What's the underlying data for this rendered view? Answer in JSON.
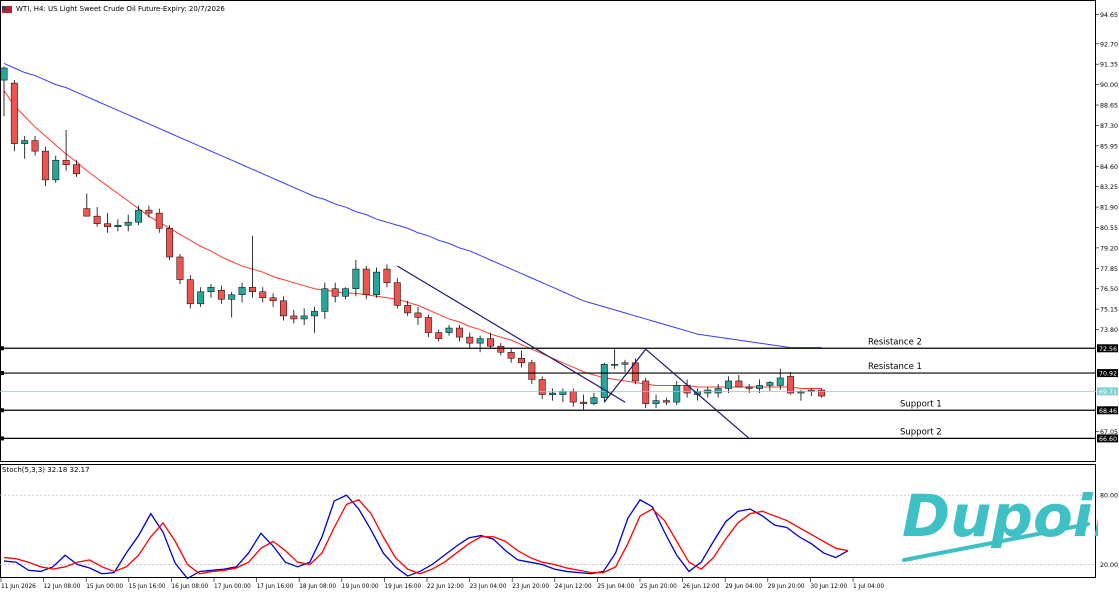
{
  "header": {
    "title": "WTI, H4:  US Light Sweet Crude Oil Future-Expiry: 20/7/2026"
  },
  "indicator": {
    "label": "Stoch(5,3,3) 32.18 32.17"
  },
  "logo": {
    "text": "Dupoin",
    "color": "#3fc0c4"
  },
  "colors": {
    "bull": "#26a69a",
    "bear": "#ef5350",
    "ma_fast": "#ff3b30",
    "ma_slow": "#3a3aff",
    "trend": "#1a1a6e",
    "level": "#000000",
    "current_price_line": "#7fd0d6"
  },
  "chart_data": [
    {
      "type": "candlestick",
      "symbol": "WTI",
      "timeframe": "H4",
      "y_ticks": [
        "94.65",
        "92.70",
        "91.35",
        "90.00",
        "88.65",
        "87.30",
        "85.95",
        "84.60",
        "83.25",
        "81.90",
        "80.55",
        "79.20",
        "77.85",
        "76.50",
        "75.15",
        "73.80",
        "67.05"
      ],
      "ylim": [
        65.7,
        95.2
      ],
      "x_labels": [
        "11 Jun 2026",
        "12 Jun 08:00",
        "15 Jun 00:00",
        "15 Jun 16:00",
        "16 Jun 08:00",
        "17 Jun 00:00",
        "17 Jun 16:00",
        "18 Jun 08:00",
        "19 Jun 00:00",
        "19 Jun 16:00",
        "22 Jun 12:00",
        "23 Jun 04:00",
        "23 Jun 20:00",
        "24 Jun 12:00",
        "25 Jun 04:00",
        "25 Jun 20:00",
        "26 Jun 12:00",
        "29 Jun 04:00",
        "29 Jun 20:00",
        "30 Jun 12:00",
        "1 Jul 04:00"
      ],
      "candles": [
        {
          "o": 90.3,
          "h": 91.2,
          "l": 87.9,
          "c": 91.1
        },
        {
          "o": 90.1,
          "h": 90.3,
          "l": 85.6,
          "c": 86.1
        },
        {
          "o": 86.1,
          "h": 86.6,
          "l": 85.1,
          "c": 86.3
        },
        {
          "o": 86.3,
          "h": 86.6,
          "l": 85.3,
          "c": 85.6
        },
        {
          "o": 85.6,
          "h": 85.9,
          "l": 83.3,
          "c": 83.7
        },
        {
          "o": 83.7,
          "h": 85.3,
          "l": 83.5,
          "c": 85.0
        },
        {
          "o": 85.0,
          "h": 87.0,
          "l": 84.3,
          "c": 84.7
        },
        {
          "o": 84.7,
          "h": 85.0,
          "l": 83.9,
          "c": 84.1
        },
        {
          "o": 81.8,
          "h": 82.8,
          "l": 81.3,
          "c": 81.3
        },
        {
          "o": 81.3,
          "h": 81.9,
          "l": 80.6,
          "c": 80.8
        },
        {
          "o": 80.8,
          "h": 81.5,
          "l": 80.2,
          "c": 80.6
        },
        {
          "o": 80.6,
          "h": 81.1,
          "l": 80.3,
          "c": 80.7
        },
        {
          "o": 80.7,
          "h": 81.4,
          "l": 80.3,
          "c": 80.9
        },
        {
          "o": 80.9,
          "h": 82.0,
          "l": 80.7,
          "c": 81.7
        },
        {
          "o": 81.7,
          "h": 82.0,
          "l": 81.2,
          "c": 81.5
        },
        {
          "o": 81.5,
          "h": 81.8,
          "l": 80.2,
          "c": 80.5
        },
        {
          "o": 80.5,
          "h": 80.7,
          "l": 78.4,
          "c": 78.6
        },
        {
          "o": 78.6,
          "h": 78.8,
          "l": 76.8,
          "c": 77.1
        },
        {
          "o": 77.1,
          "h": 77.4,
          "l": 75.2,
          "c": 75.5
        },
        {
          "o": 75.5,
          "h": 76.6,
          "l": 75.3,
          "c": 76.3
        },
        {
          "o": 76.3,
          "h": 76.8,
          "l": 75.9,
          "c": 76.6
        },
        {
          "o": 76.4,
          "h": 76.7,
          "l": 75.5,
          "c": 75.8
        },
        {
          "o": 75.8,
          "h": 76.3,
          "l": 74.6,
          "c": 76.1
        },
        {
          "o": 76.1,
          "h": 76.9,
          "l": 75.6,
          "c": 76.6
        },
        {
          "o": 76.6,
          "h": 80.0,
          "l": 75.9,
          "c": 76.3
        },
        {
          "o": 76.3,
          "h": 76.6,
          "l": 75.6,
          "c": 75.9
        },
        {
          "o": 75.9,
          "h": 76.2,
          "l": 75.3,
          "c": 75.7
        },
        {
          "o": 75.7,
          "h": 76.0,
          "l": 74.4,
          "c": 74.7
        },
        {
          "o": 74.7,
          "h": 75.1,
          "l": 74.2,
          "c": 74.5
        },
        {
          "o": 74.5,
          "h": 75.2,
          "l": 74.1,
          "c": 74.7
        },
        {
          "o": 74.7,
          "h": 75.3,
          "l": 73.6,
          "c": 75.0
        },
        {
          "o": 75.0,
          "h": 76.9,
          "l": 74.5,
          "c": 76.5
        },
        {
          "o": 76.5,
          "h": 76.9,
          "l": 75.6,
          "c": 76.0
        },
        {
          "o": 76.0,
          "h": 76.6,
          "l": 75.8,
          "c": 76.5
        },
        {
          "o": 76.5,
          "h": 78.4,
          "l": 76.0,
          "c": 77.8
        },
        {
          "o": 77.8,
          "h": 78.0,
          "l": 75.8,
          "c": 76.1
        },
        {
          "o": 76.1,
          "h": 77.9,
          "l": 75.9,
          "c": 77.6
        },
        {
          "o": 77.8,
          "h": 78.1,
          "l": 76.6,
          "c": 76.9
        },
        {
          "o": 76.9,
          "h": 77.2,
          "l": 75.2,
          "c": 75.4
        },
        {
          "o": 75.4,
          "h": 75.7,
          "l": 74.7,
          "c": 74.9
        },
        {
          "o": 74.9,
          "h": 75.3,
          "l": 74.1,
          "c": 74.6
        },
        {
          "o": 74.6,
          "h": 74.8,
          "l": 73.3,
          "c": 73.6
        },
        {
          "o": 73.6,
          "h": 73.8,
          "l": 73.0,
          "c": 73.2
        },
        {
          "o": 73.6,
          "h": 74.1,
          "l": 73.4,
          "c": 73.9
        },
        {
          "o": 73.9,
          "h": 74.1,
          "l": 73.0,
          "c": 73.3
        },
        {
          "o": 73.3,
          "h": 73.6,
          "l": 72.5,
          "c": 72.9
        },
        {
          "o": 72.9,
          "h": 73.4,
          "l": 72.3,
          "c": 73.2
        },
        {
          "o": 73.2,
          "h": 73.6,
          "l": 72.5,
          "c": 72.7
        },
        {
          "o": 72.7,
          "h": 72.9,
          "l": 72.1,
          "c": 72.3
        },
        {
          "o": 72.3,
          "h": 72.6,
          "l": 71.6,
          "c": 71.9
        },
        {
          "o": 71.9,
          "h": 72.4,
          "l": 71.3,
          "c": 71.6
        },
        {
          "o": 71.6,
          "h": 71.8,
          "l": 70.2,
          "c": 70.5
        },
        {
          "o": 70.5,
          "h": 70.7,
          "l": 69.2,
          "c": 69.5
        },
        {
          "o": 69.5,
          "h": 69.9,
          "l": 69.1,
          "c": 69.6
        },
        {
          "o": 69.5,
          "h": 69.9,
          "l": 69.0,
          "c": 69.7
        },
        {
          "o": 69.7,
          "h": 69.9,
          "l": 68.7,
          "c": 69.0
        },
        {
          "o": 69.0,
          "h": 69.5,
          "l": 68.5,
          "c": 68.9
        },
        {
          "o": 68.9,
          "h": 69.6,
          "l": 68.8,
          "c": 69.3
        },
        {
          "o": 69.3,
          "h": 71.6,
          "l": 69.0,
          "c": 71.5
        },
        {
          "o": 71.5,
          "h": 72.5,
          "l": 71.2,
          "c": 71.5
        },
        {
          "o": 71.5,
          "h": 71.8,
          "l": 71.0,
          "c": 71.6
        },
        {
          "o": 71.6,
          "h": 71.9,
          "l": 70.2,
          "c": 70.4
        },
        {
          "o": 70.4,
          "h": 70.6,
          "l": 68.6,
          "c": 68.9
        },
        {
          "o": 68.9,
          "h": 69.5,
          "l": 68.6,
          "c": 69.1
        },
        {
          "o": 69.1,
          "h": 69.3,
          "l": 68.8,
          "c": 69.0
        },
        {
          "o": 69.0,
          "h": 70.4,
          "l": 68.8,
          "c": 70.1
        },
        {
          "o": 70.1,
          "h": 70.5,
          "l": 69.3,
          "c": 69.6
        },
        {
          "o": 69.5,
          "h": 69.9,
          "l": 69.1,
          "c": 69.7
        },
        {
          "o": 69.6,
          "h": 70.0,
          "l": 69.3,
          "c": 69.8
        },
        {
          "o": 69.6,
          "h": 70.2,
          "l": 69.3,
          "c": 69.9
        },
        {
          "o": 69.9,
          "h": 70.7,
          "l": 69.6,
          "c": 70.4
        },
        {
          "o": 70.4,
          "h": 70.8,
          "l": 70.0,
          "c": 70.0
        },
        {
          "o": 70.0,
          "h": 70.2,
          "l": 69.6,
          "c": 69.9
        },
        {
          "o": 69.9,
          "h": 70.5,
          "l": 69.6,
          "c": 70.1
        },
        {
          "o": 70.1,
          "h": 70.4,
          "l": 69.7,
          "c": 70.3
        },
        {
          "o": 70.1,
          "h": 71.2,
          "l": 69.8,
          "c": 70.6
        },
        {
          "o": 70.7,
          "h": 71.0,
          "l": 69.5,
          "c": 69.6
        },
        {
          "o": 69.6,
          "h": 69.8,
          "l": 69.1,
          "c": 69.7
        },
        {
          "o": 69.7,
          "h": 69.9,
          "l": 69.4,
          "c": 69.8
        },
        {
          "o": 69.8,
          "h": 69.9,
          "l": 69.3,
          "c": 69.4
        }
      ],
      "ma_fast": [
        89.6,
        88.6,
        87.9,
        87.2,
        86.6,
        86.0,
        85.4,
        84.9,
        84.3,
        83.8,
        83.3,
        82.8,
        82.3,
        81.8,
        81.3,
        80.9,
        80.5,
        80.1,
        79.7,
        79.3,
        79.0,
        78.6,
        78.3,
        78.0,
        77.8,
        77.6,
        77.3,
        77.1,
        76.9,
        76.7,
        76.5,
        76.4,
        76.3,
        76.2,
        76.2,
        76.1,
        76.0,
        75.9,
        75.8,
        75.6,
        75.4,
        75.1,
        74.8,
        74.5,
        74.3,
        74.0,
        73.8,
        73.5,
        73.3,
        73.1,
        72.8,
        72.5,
        72.2,
        71.9,
        71.6,
        71.3,
        71.0,
        70.8,
        70.6,
        70.5,
        70.4,
        70.3,
        70.2,
        70.1,
        70.1,
        70.1,
        70.1,
        70.0,
        70.0,
        70.0,
        70.0,
        70.0,
        70.0,
        70.0,
        70.0,
        70.0,
        70.0,
        69.9,
        69.9,
        69.9
      ],
      "ma_slow": [
        91.4,
        91.1,
        90.8,
        90.6,
        90.3,
        90.0,
        89.8,
        89.5,
        89.2,
        88.9,
        88.6,
        88.3,
        88.0,
        87.7,
        87.4,
        87.1,
        86.8,
        86.5,
        86.2,
        85.9,
        85.6,
        85.3,
        85.0,
        84.7,
        84.4,
        84.1,
        83.8,
        83.5,
        83.2,
        82.9,
        82.6,
        82.4,
        82.1,
        81.9,
        81.6,
        81.4,
        81.1,
        80.9,
        80.7,
        80.5,
        80.2,
        80.0,
        79.7,
        79.5,
        79.2,
        79.0,
        78.7,
        78.4,
        78.1,
        77.8,
        77.5,
        77.2,
        76.9,
        76.6,
        76.3,
        76.0,
        75.7,
        75.5,
        75.3,
        75.1,
        74.9,
        74.7,
        74.5,
        74.3,
        74.1,
        73.9,
        73.7,
        73.5,
        73.4,
        73.3,
        73.2,
        73.1,
        73.0,
        72.9,
        72.8,
        72.7,
        72.6,
        72.6,
        72.6,
        72.6
      ],
      "levels": [
        {
          "name": "Resistance 2",
          "value": 72.56,
          "label": "72.56"
        },
        {
          "name": "Resistance 1",
          "value": 70.92,
          "label": "70.92"
        },
        {
          "name": "Support 1",
          "value": 68.46,
          "label": "68.46"
        },
        {
          "name": "Support 2",
          "value": 66.6,
          "label": "66.60"
        }
      ],
      "current_price": {
        "value": 69.71,
        "label": "69.71"
      },
      "trendlines": [
        {
          "from": {
            "i": 38,
            "v": 78.0
          },
          "to": {
            "i": 60,
            "v": 69.0
          }
        },
        {
          "from": {
            "i": 58,
            "v": 69.0
          },
          "to": {
            "i": 62,
            "v": 72.5
          }
        },
        {
          "from": {
            "i": 62,
            "v": 72.5
          },
          "to": {
            "i": 72,
            "v": 66.6
          }
        }
      ]
    },
    {
      "type": "line",
      "name": "Stoch(5,3,3)",
      "ylim": [
        0,
        100
      ],
      "y_ticks": [
        "80.00",
        "20.00"
      ],
      "levels": [
        80,
        20
      ],
      "series": [
        {
          "color": "#0000cc",
          "values": [
            23,
            22,
            15,
            14,
            18,
            28,
            20,
            17,
            12,
            13,
            30,
            45,
            64,
            48,
            21,
            8,
            14,
            15,
            16,
            18,
            30,
            47,
            36,
            22,
            18,
            22,
            44,
            75,
            80,
            68,
            50,
            30,
            18,
            10,
            14,
            20,
            28,
            36,
            43,
            45,
            42,
            32,
            24,
            22,
            20,
            16,
            14,
            13,
            12,
            14,
            30,
            60,
            76,
            70,
            48,
            28,
            14,
            22,
            40,
            57,
            66,
            68,
            62,
            54,
            52,
            44,
            38,
            30,
            26,
            32
          ]
        },
        {
          "color": "#ff0000",
          "values": [
            26,
            25,
            22,
            18,
            16,
            18,
            22,
            24,
            18,
            14,
            18,
            28,
            44,
            56,
            40,
            20,
            12,
            14,
            15,
            17,
            22,
            34,
            40,
            32,
            22,
            20,
            30,
            52,
            72,
            76,
            64,
            44,
            26,
            16,
            12,
            16,
            22,
            30,
            38,
            44,
            44,
            40,
            32,
            26,
            22,
            20,
            17,
            15,
            13,
            13,
            18,
            38,
            62,
            68,
            58,
            40,
            22,
            16,
            26,
            42,
            56,
            64,
            66,
            62,
            58,
            52,
            46,
            40,
            34,
            32
          ]
        }
      ]
    }
  ]
}
